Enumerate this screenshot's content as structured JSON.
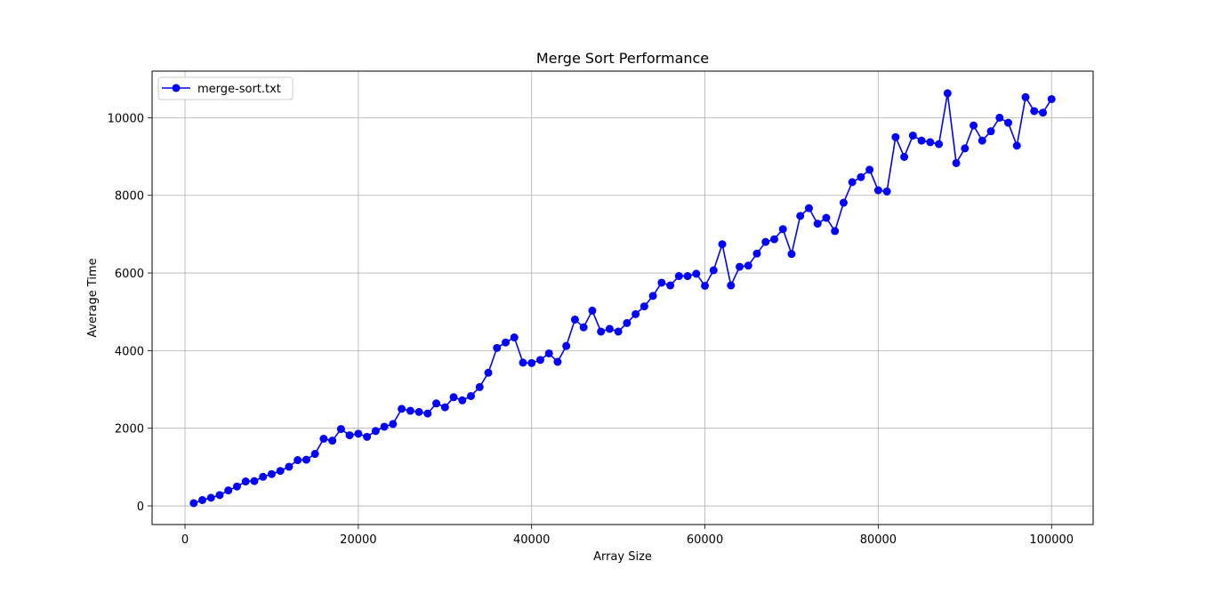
{
  "chart_data": {
    "type": "line",
    "title": "Merge Sort Performance",
    "xlabel": "Array Size",
    "ylabel": "Average Time",
    "xlim": [
      -3800,
      104800
    ],
    "ylim": [
      -480,
      11200
    ],
    "xticks": [
      0,
      20000,
      40000,
      60000,
      80000,
      100000
    ],
    "yticks": [
      0,
      2000,
      4000,
      6000,
      8000,
      10000
    ],
    "grid": true,
    "legend_position": "top-left",
    "series": [
      {
        "name": "merge-sort.txt",
        "color": "#0000ff",
        "marker": "circle",
        "x": [
          1000,
          2000,
          3000,
          4000,
          5000,
          6000,
          7000,
          8000,
          9000,
          10000,
          11000,
          12000,
          13000,
          14000,
          15000,
          16000,
          17000,
          18000,
          19000,
          20000,
          21000,
          22000,
          23000,
          24000,
          25000,
          26000,
          27000,
          28000,
          29000,
          30000,
          31000,
          32000,
          33000,
          34000,
          35000,
          36000,
          37000,
          38000,
          39000,
          40000,
          41000,
          42000,
          43000,
          44000,
          45000,
          46000,
          47000,
          48000,
          49000,
          50000,
          51000,
          52000,
          53000,
          54000,
          55000,
          56000,
          57000,
          58000,
          59000,
          60000,
          61000,
          62000,
          63000,
          64000,
          65000,
          66000,
          67000,
          68000,
          69000,
          70000,
          71000,
          72000,
          73000,
          74000,
          75000,
          76000,
          77000,
          78000,
          79000,
          80000,
          81000,
          82000,
          83000,
          84000,
          85000,
          86000,
          87000,
          88000,
          89000,
          90000,
          91000,
          92000,
          93000,
          94000,
          95000,
          96000,
          97000,
          98000,
          99000,
          100000
        ],
        "y": [
          70,
          150,
          210,
          280,
          400,
          500,
          630,
          640,
          750,
          820,
          900,
          1010,
          1180,
          1190,
          1340,
          1730,
          1680,
          1980,
          1820,
          1860,
          1780,
          1930,
          2040,
          2110,
          2500,
          2450,
          2420,
          2380,
          2640,
          2540,
          2800,
          2720,
          2830,
          3060,
          3430,
          4070,
          4210,
          4340,
          3690,
          3680,
          3760,
          3930,
          3710,
          4120,
          4800,
          4600,
          5030,
          4490,
          4560,
          4490,
          4710,
          4940,
          5140,
          5410,
          5750,
          5680,
          5920,
          5920,
          5980,
          5670,
          6070,
          6740,
          5680,
          6160,
          6190,
          6500,
          6800,
          6870,
          7130,
          6490,
          7470,
          7670,
          7270,
          7420,
          7080,
          7810,
          8340,
          8470,
          8660,
          8130,
          8100,
          9500,
          8990,
          9540,
          9410,
          9370,
          9320,
          10630,
          8830,
          9210,
          9800,
          9410,
          9650,
          10000,
          9870,
          9280,
          10530,
          10170,
          10130,
          10480
        ]
      }
    ]
  }
}
